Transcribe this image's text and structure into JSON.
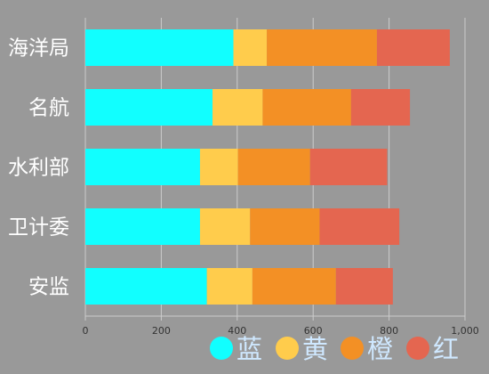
{
  "chart_data": {
    "type": "bar",
    "orientation": "horizontal",
    "stacked": true,
    "categories": [
      "海洋局",
      "名航",
      "水利部",
      "卫计委",
      "安监"
    ],
    "series": [
      {
        "name": "蓝",
        "color": "#11ffff",
        "values": [
          390,
          335,
          302,
          302,
          320
        ]
      },
      {
        "name": "黄",
        "color": "#ffcc4c",
        "values": [
          88,
          132,
          100,
          132,
          120
        ]
      },
      {
        "name": "橙",
        "color": "#f39025",
        "values": [
          290,
          233,
          190,
          183,
          220
        ]
      },
      {
        "name": "红",
        "color": "#e46650",
        "values": [
          192,
          155,
          203,
          210,
          150
        ]
      }
    ],
    "xlim": [
      0,
      1000
    ],
    "xticks": [
      0,
      200,
      400,
      600,
      800,
      1000
    ],
    "xtick_labels": [
      "0",
      "200",
      "400",
      "600",
      "800",
      "1,000"
    ],
    "grid": true,
    "legend_position": "bottom-right"
  },
  "colors": {
    "background": "#999999",
    "grid": "#cccccc",
    "category_label": "#ffffff",
    "legend_text": "#cfe8ff",
    "tick_label": "#333333"
  }
}
